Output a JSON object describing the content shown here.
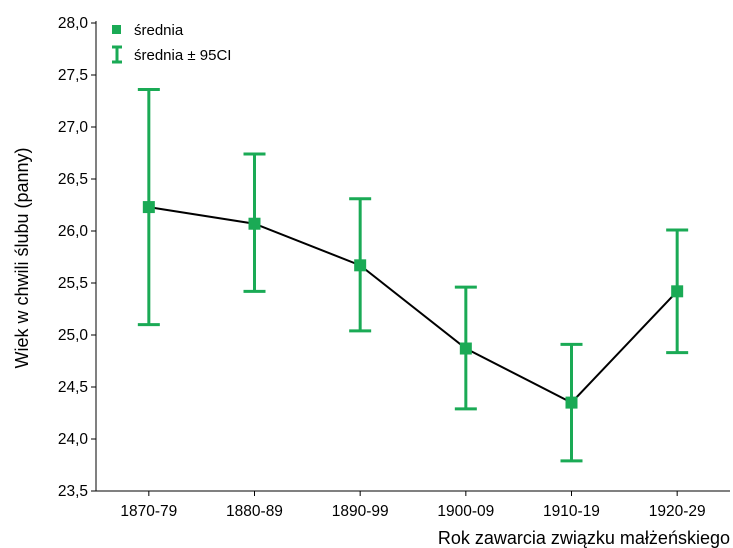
{
  "chart_data": {
    "type": "line",
    "categories": [
      "1870-79",
      "1880-89",
      "1890-99",
      "1900-09",
      "1910-19",
      "1920-29"
    ],
    "series": [
      {
        "name": "średnia",
        "values": [
          26.23,
          26.07,
          25.67,
          24.87,
          24.35,
          25.42
        ],
        "ci_lower": [
          25.1,
          25.42,
          25.04,
          24.29,
          23.79,
          24.83
        ],
        "ci_upper": [
          27.36,
          26.74,
          26.31,
          25.46,
          24.91,
          26.01
        ]
      }
    ],
    "legend": {
      "position": "top-left",
      "mean_label": "średnia",
      "ci_label": "średnia ± 95CI"
    },
    "xlabel": "Rok zawarcia związku małżeńskiego",
    "ylabel": "Wiek w chwili ślubu (panny)",
    "ylim": [
      23.5,
      28.0
    ],
    "yticks": [
      "23,5",
      "24,0",
      "24,5",
      "25,0",
      "25,5",
      "26,0",
      "26,5",
      "27,0",
      "27,5",
      "28,0"
    ],
    "grid": false,
    "colors": {
      "marker": "#1aaa55",
      "line": "#000000"
    }
  }
}
